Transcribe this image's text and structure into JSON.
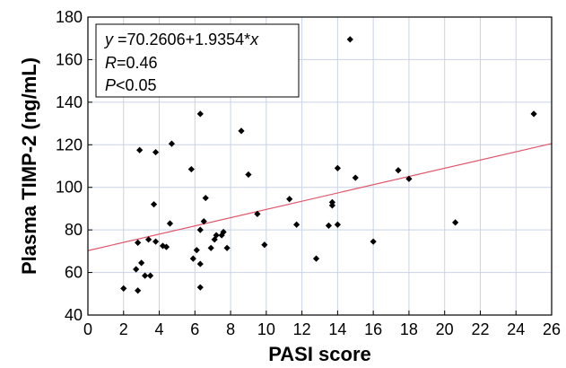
{
  "chart_data": {
    "type": "scatter",
    "xlabel": "PASI score",
    "ylabel": "Plasma TIMP-2 (ng/mL)",
    "xlim": [
      0,
      26
    ],
    "ylim": [
      40,
      180
    ],
    "xticks": [
      0,
      2,
      4,
      6,
      8,
      10,
      12,
      14,
      16,
      18,
      20,
      22,
      24,
      26
    ],
    "yticks": [
      40,
      60,
      80,
      100,
      120,
      140,
      160,
      180
    ],
    "grid": true,
    "points": [
      {
        "x": 2.0,
        "y": 52.5
      },
      {
        "x": 2.7,
        "y": 61.5
      },
      {
        "x": 2.8,
        "y": 51.5
      },
      {
        "x": 2.8,
        "y": 74.0
      },
      {
        "x": 2.9,
        "y": 117.5
      },
      {
        "x": 3.0,
        "y": 64.5
      },
      {
        "x": 3.2,
        "y": 58.5
      },
      {
        "x": 3.4,
        "y": 75.5
      },
      {
        "x": 3.5,
        "y": 58.5
      },
      {
        "x": 3.7,
        "y": 92.0
      },
      {
        "x": 3.8,
        "y": 116.5
      },
      {
        "x": 3.8,
        "y": 74.5
      },
      {
        "x": 4.2,
        "y": 72.5
      },
      {
        "x": 4.4,
        "y": 72.0
      },
      {
        "x": 4.6,
        "y": 83.0
      },
      {
        "x": 4.7,
        "y": 120.5
      },
      {
        "x": 5.8,
        "y": 108.5
      },
      {
        "x": 5.9,
        "y": 66.5
      },
      {
        "x": 6.1,
        "y": 70.5
      },
      {
        "x": 6.3,
        "y": 64.0
      },
      {
        "x": 6.3,
        "y": 80.0
      },
      {
        "x": 6.3,
        "y": 53.0
      },
      {
        "x": 6.3,
        "y": 134.5
      },
      {
        "x": 6.5,
        "y": 84.0
      },
      {
        "x": 6.6,
        "y": 95.0
      },
      {
        "x": 6.9,
        "y": 71.5
      },
      {
        "x": 7.1,
        "y": 75.5
      },
      {
        "x": 7.2,
        "y": 77.5
      },
      {
        "x": 7.5,
        "y": 77.5
      },
      {
        "x": 7.6,
        "y": 79.0
      },
      {
        "x": 7.8,
        "y": 71.5
      },
      {
        "x": 8.6,
        "y": 126.5
      },
      {
        "x": 9.0,
        "y": 106.0
      },
      {
        "x": 9.5,
        "y": 87.5
      },
      {
        "x": 9.9,
        "y": 73.0
      },
      {
        "x": 11.3,
        "y": 94.5
      },
      {
        "x": 11.7,
        "y": 82.5
      },
      {
        "x": 12.8,
        "y": 66.5
      },
      {
        "x": 13.5,
        "y": 82.0
      },
      {
        "x": 13.7,
        "y": 93.0
      },
      {
        "x": 13.7,
        "y": 91.5
      },
      {
        "x": 14.0,
        "y": 109.0
      },
      {
        "x": 14.0,
        "y": 82.5
      },
      {
        "x": 14.7,
        "y": 169.5
      },
      {
        "x": 15.0,
        "y": 104.5
      },
      {
        "x": 16.0,
        "y": 74.5
      },
      {
        "x": 17.4,
        "y": 108.0
      },
      {
        "x": 18.0,
        "y": 104.0
      },
      {
        "x": 20.6,
        "y": 83.5
      },
      {
        "x": 25.0,
        "y": 134.5
      }
    ],
    "regression": {
      "intercept": 70.2606,
      "slope": 1.9354
    },
    "annotations": [
      {
        "prefix": "y",
        "text": " =70.2606+1.9354*",
        "suffix": "x"
      },
      {
        "prefix": "R",
        "text": "=0.46",
        "suffix": ""
      },
      {
        "prefix": "P",
        "text": "<0.05",
        "suffix": ""
      }
    ],
    "colors": {
      "points": "#000000",
      "regression_line": "#e0556a",
      "grid": "#c9d3e6",
      "axis": "#000000"
    }
  }
}
